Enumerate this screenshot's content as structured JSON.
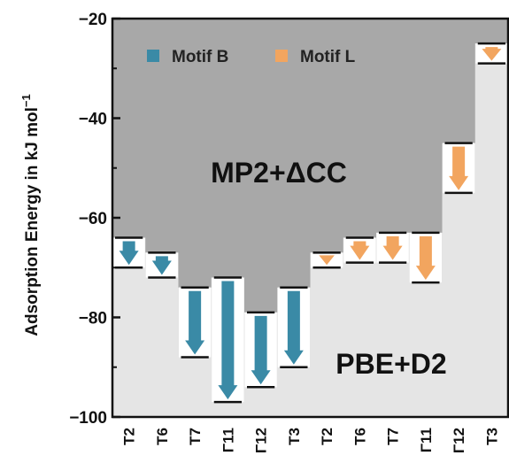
{
  "chart_data": {
    "type": "bar",
    "ylabel": "Adsorption Energy in kJ mol",
    "ylabel_sup": "−1",
    "ylim": [
      -100,
      -20
    ],
    "yticks": [
      {
        "value": -20,
        "label": "−20"
      },
      {
        "value": -40,
        "label": "−40"
      },
      {
        "value": -60,
        "label": "−60"
      },
      {
        "value": -80,
        "label": "−80"
      },
      {
        "value": -100,
        "label": "−100"
      }
    ],
    "categories": [
      "T2",
      "T6",
      "T7",
      "Γ11",
      "Γ12",
      "T3",
      "T2",
      "T6",
      "T7",
      "Γ11",
      "Γ12",
      "T3"
    ],
    "series": [
      {
        "name": "Motif B",
        "color": "#3a8aa6",
        "points": [
          {
            "category": "T2",
            "mp2_dcc": -64,
            "pbe_d2": -70
          },
          {
            "category": "T6",
            "mp2_dcc": -67,
            "pbe_d2": -72
          },
          {
            "category": "T7",
            "mp2_dcc": -74,
            "pbe_d2": -88
          },
          {
            "category": "Γ11",
            "mp2_dcc": -72,
            "pbe_d2": -97
          },
          {
            "category": "Γ12",
            "mp2_dcc": -79,
            "pbe_d2": -94
          },
          {
            "category": "T3",
            "mp2_dcc": -74,
            "pbe_d2": -90
          }
        ]
      },
      {
        "name": "Motif L",
        "color": "#f2a55f",
        "points": [
          {
            "category": "T2",
            "mp2_dcc": -67,
            "pbe_d2": -70
          },
          {
            "category": "T6",
            "mp2_dcc": -64,
            "pbe_d2": -69
          },
          {
            "category": "T7",
            "mp2_dcc": -63,
            "pbe_d2": -69
          },
          {
            "category": "Γ11",
            "mp2_dcc": -63,
            "pbe_d2": -73
          },
          {
            "category": "Γ12",
            "mp2_dcc": -45,
            "pbe_d2": -55
          },
          {
            "category": "T3",
            "mp2_dcc": -25,
            "pbe_d2": -29
          }
        ]
      }
    ],
    "region_labels": {
      "upper": "MP2+ΔCC",
      "lower": "PBE+D2"
    },
    "legend": {
      "placement": "top",
      "items": [
        "Motif B",
        "Motif L"
      ]
    },
    "colors": {
      "upper_region": "#a8a8a8",
      "lower_region": "#e5e5e5",
      "gap": "#ffffff"
    }
  }
}
